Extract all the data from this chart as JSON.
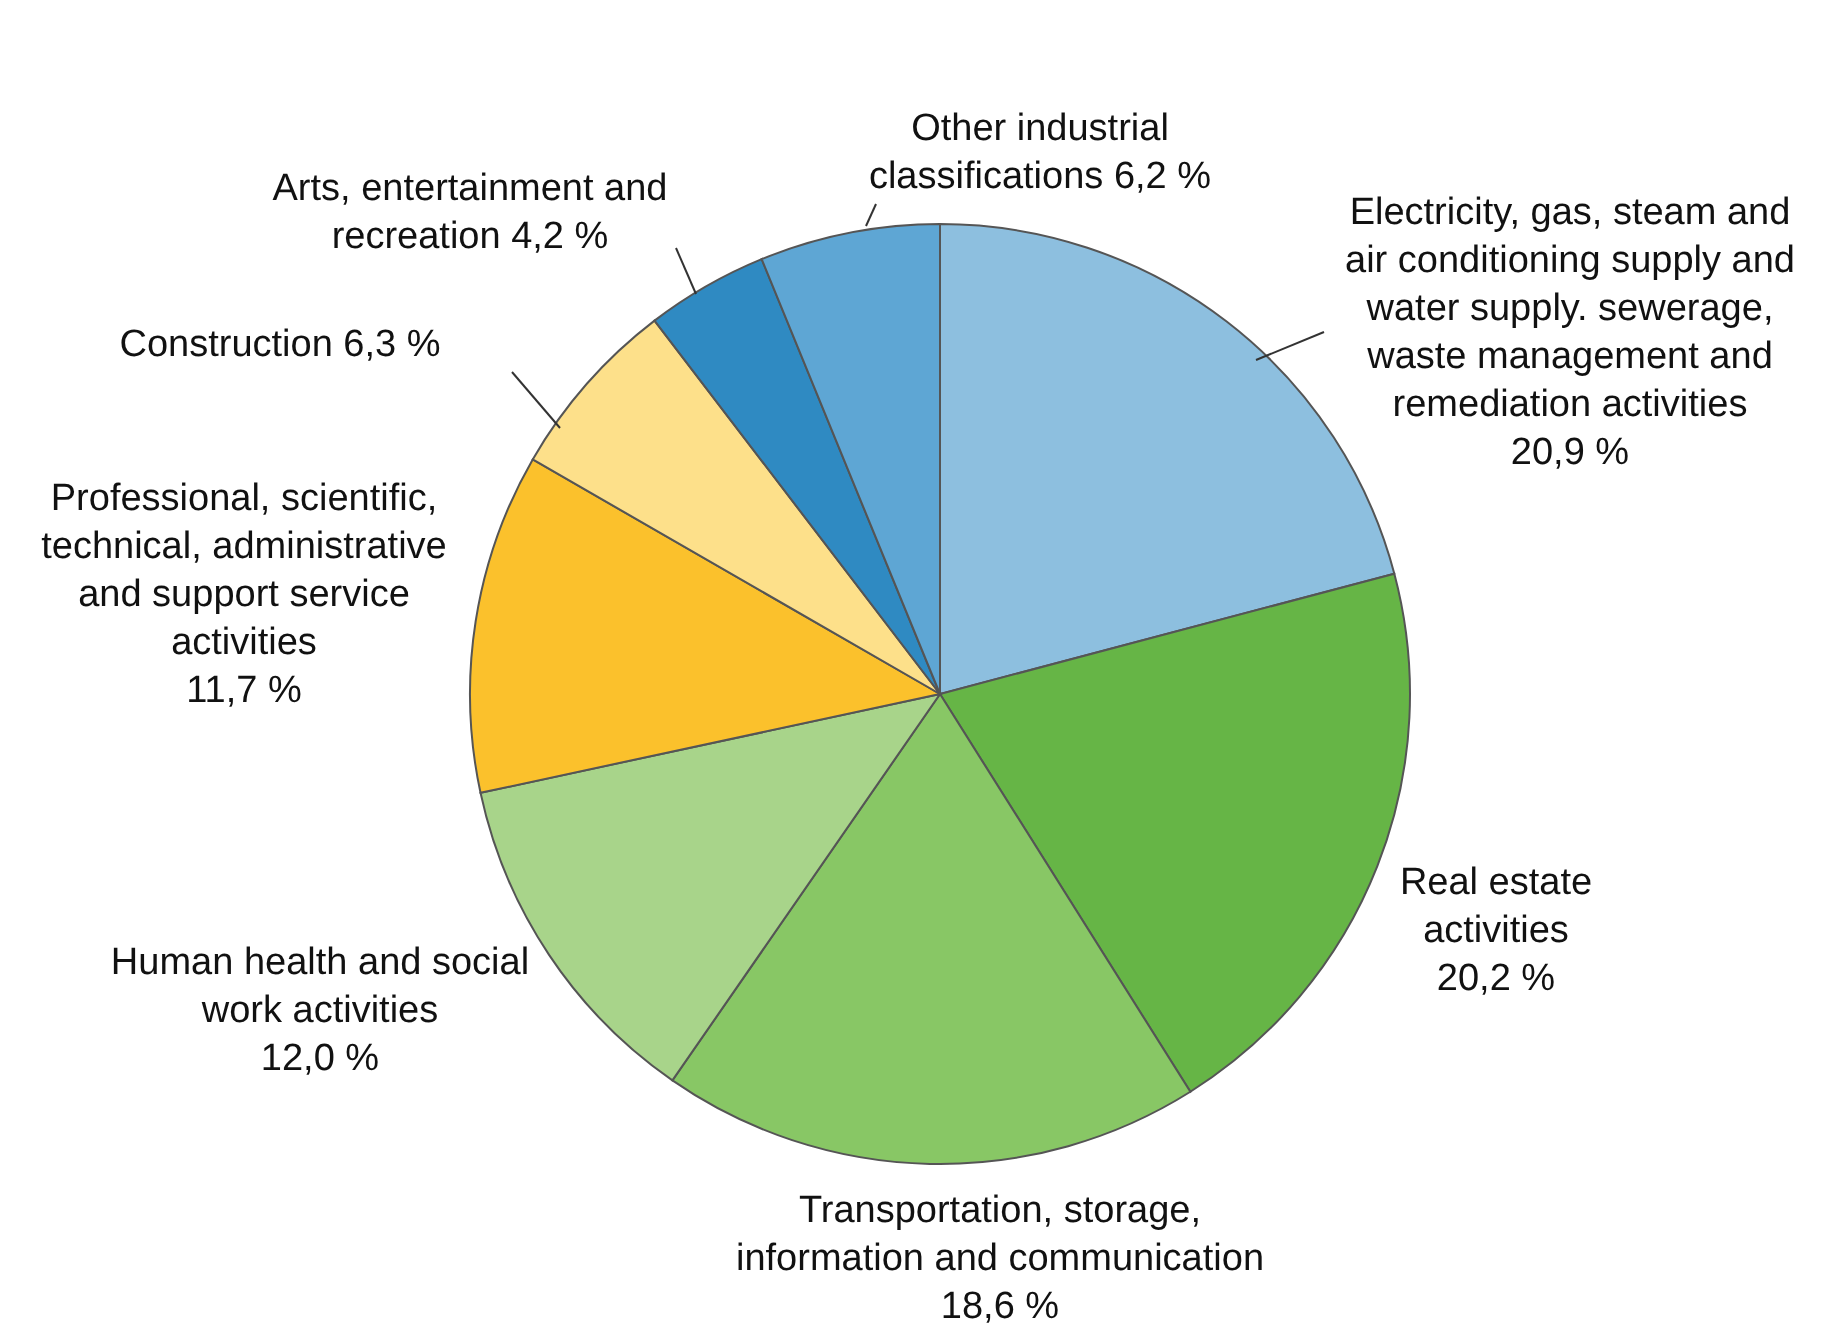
{
  "chart_data": {
    "type": "pie",
    "categories": [
      "Electricity, gas, steam and air conditioning supply and water supply. sewerage, waste management and remediation activities",
      "Real estate activities",
      "Transportation, storage, information and communication",
      "Human health and social work activities",
      "Professional, scientific, technical, administrative and support service activities",
      "Construction",
      "Arts, entertainment and recreation",
      "Other industrial classifications"
    ],
    "values": [
      20.9,
      20.2,
      18.6,
      12.0,
      11.7,
      6.3,
      4.2,
      6.2
    ],
    "value_labels": [
      "20,9 %",
      "20,2 %",
      "18,6 %",
      "12,0 %",
      "11,7 %",
      "6,3 %",
      "4,2 %",
      "6,2 %"
    ],
    "colors": [
      "#8dbfdf",
      "#66b546",
      "#88c765",
      "#a8d48a",
      "#fbc12c",
      "#fde08a",
      "#2f8ac2",
      "#5ea6d4"
    ]
  }
}
